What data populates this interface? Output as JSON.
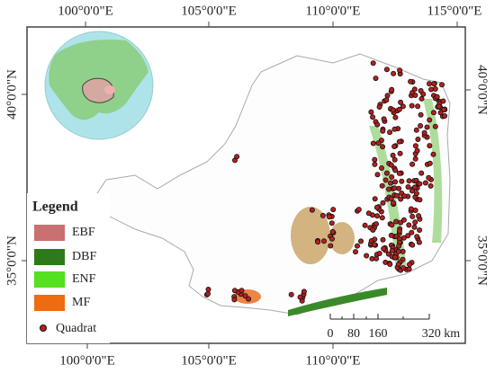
{
  "map": {
    "top_labels": [
      "100°0'0\"E",
      "105°0'0\"E",
      "110°0'0\"E",
      "115°0'0\"E"
    ],
    "bottom_labels": [
      "100°0'0\"E",
      "105°0'0\"E",
      "110°0'0\"E"
    ],
    "left_labels": [
      "40°0'0\"N",
      "35°0'0\"N"
    ],
    "right_labels": [
      "40°0'0\"N",
      "35°0'0\"N"
    ]
  },
  "legend": {
    "title": "Legend",
    "items": [
      "EBF",
      "DBF",
      "ENF",
      "MF",
      "Quadrat"
    ]
  },
  "scale_bar": {
    "labels": [
      "0",
      "80",
      "160",
      "320 km"
    ]
  }
}
